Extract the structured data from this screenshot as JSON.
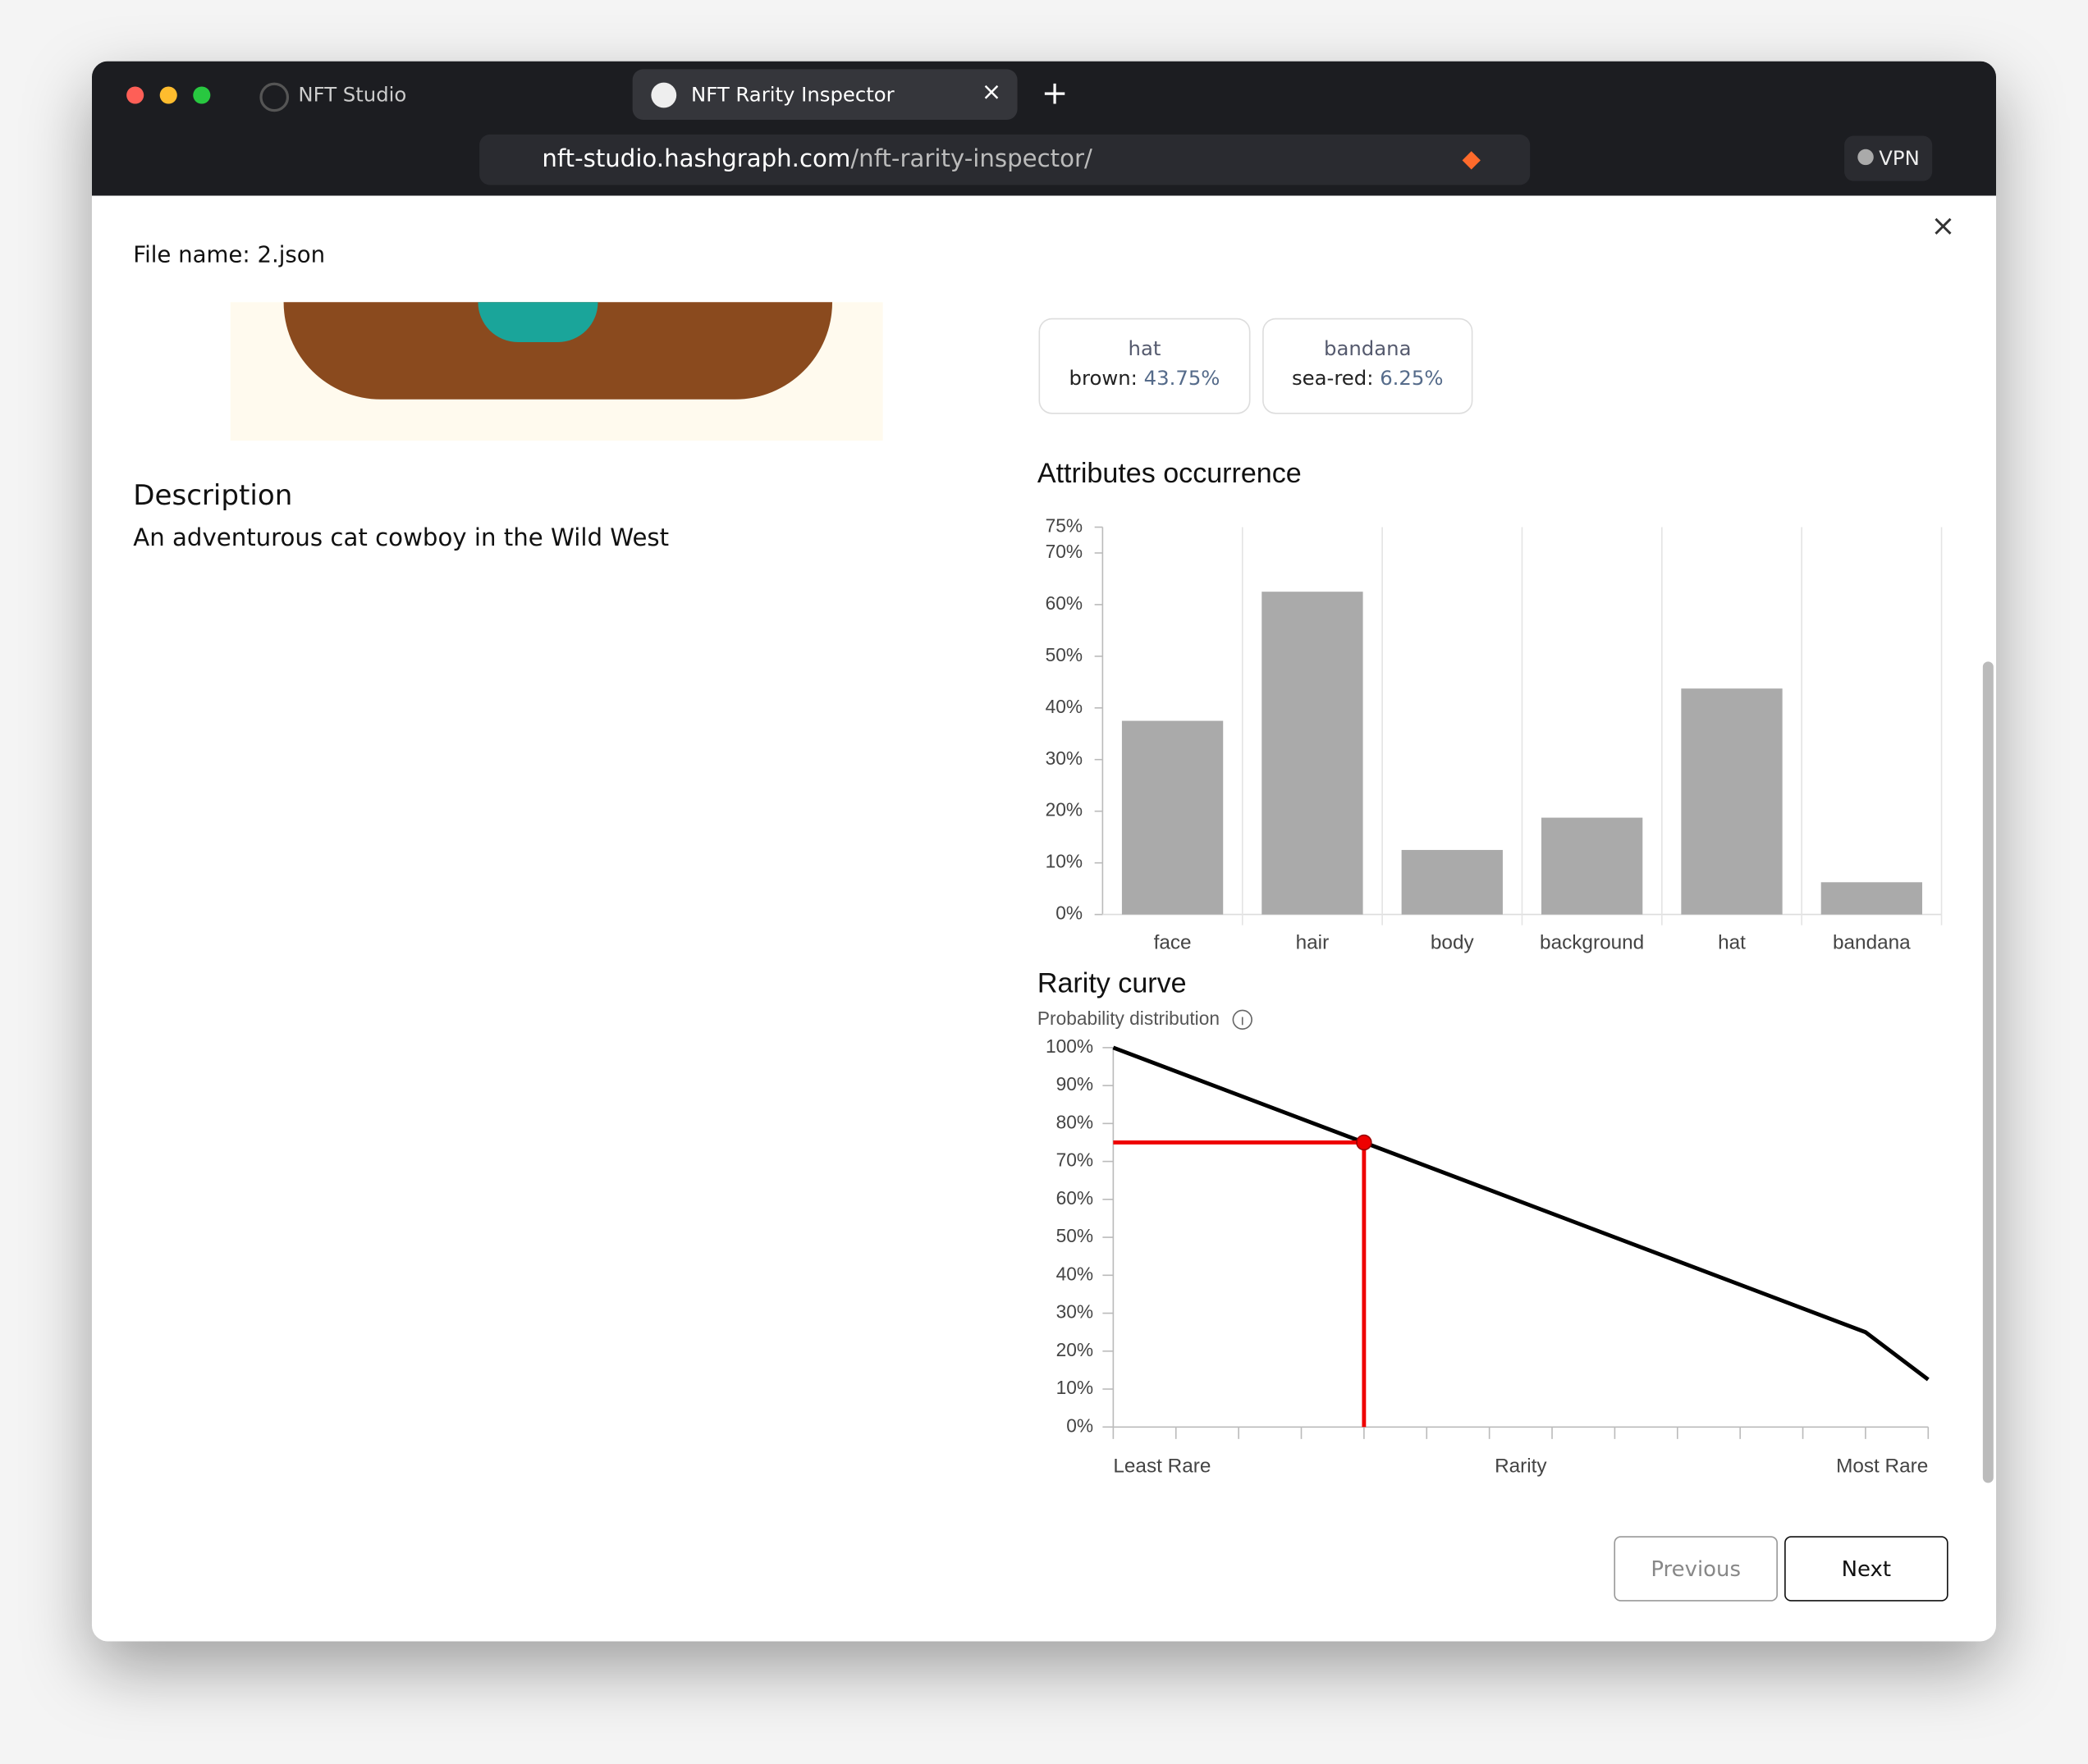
{
  "browser": {
    "tabs": [
      "NFT Studio",
      "NFT Rarity Inspector"
    ],
    "url_host": "nft-studio.hashgraph.com",
    "url_path": "/nft-rarity-inspector/",
    "vpn": "VPN"
  },
  "file_name": "File name: 2.json",
  "attribute_cards": [
    {
      "trait": "hat",
      "value": "brown:",
      "percent": "43.75%"
    },
    {
      "trait": "bandana",
      "value": "sea-red:",
      "percent": "6.25%"
    }
  ],
  "description": {
    "heading": "Description",
    "text": "An adventurous cat cowboy in the Wild West"
  },
  "buttons": {
    "previous": "Previous",
    "next": "Next"
  },
  "chart_data": [
    {
      "type": "bar",
      "title": "Attributes occurrence",
      "categories": [
        "face",
        "hair",
        "body",
        "background",
        "hat",
        "bandana"
      ],
      "values": [
        37.5,
        62.5,
        12.5,
        18.75,
        43.75,
        6.25
      ],
      "color": "#aaaaaa",
      "ylim": [
        0,
        75
      ],
      "yticks": [
        {
          "value": 0,
          "label": "0%"
        },
        {
          "value": 10,
          "label": "10%"
        },
        {
          "value": 20,
          "label": "20%"
        },
        {
          "value": 30,
          "label": "30%"
        },
        {
          "value": 40,
          "label": "40%"
        },
        {
          "value": 50,
          "label": "50%"
        },
        {
          "value": 60,
          "label": "60%"
        },
        {
          "value": 70,
          "label": "70%"
        },
        {
          "value": 75,
          "label": "75%"
        }
      ],
      "grid": true
    },
    {
      "type": "line",
      "title": "Rarity curve",
      "subtitle": "Probability distribution",
      "x_label": "Rarity",
      "x_start_label": "Least Rare",
      "x_end_label": "Most Rare",
      "series": [
        {
          "color": "#000000",
          "x": [
            0,
            12,
            13
          ],
          "values": [
            100,
            25,
            12.5
          ]
        }
      ],
      "highlight": {
        "x": 4,
        "y": 75,
        "color": "#ee0000"
      },
      "xlim": [
        0,
        13
      ],
      "xticks": [
        0,
        1,
        2,
        3,
        4,
        5,
        6,
        7,
        8,
        9,
        10,
        11,
        12,
        13
      ],
      "ylim": [
        0,
        100
      ],
      "yticks": [
        {
          "value": 0,
          "label": "0%"
        },
        {
          "value": 10,
          "label": "10%"
        },
        {
          "value": 20,
          "label": "20%"
        },
        {
          "value": 30,
          "label": "30%"
        },
        {
          "value": 40,
          "label": "40%"
        },
        {
          "value": 50,
          "label": "50%"
        },
        {
          "value": 60,
          "label": "60%"
        },
        {
          "value": 70,
          "label": "70%"
        },
        {
          "value": 80,
          "label": "80%"
        },
        {
          "value": 90,
          "label": "90%"
        },
        {
          "value": 100,
          "label": "100%"
        }
      ]
    }
  ]
}
